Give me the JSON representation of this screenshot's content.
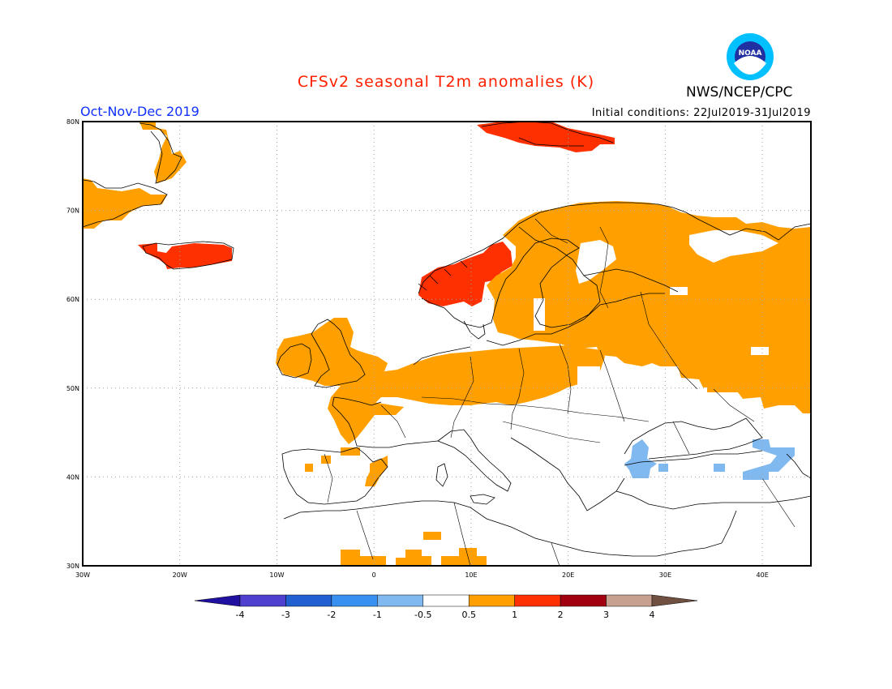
{
  "title": "CFSv2 seasonal T2m anomalies (K)",
  "period": "Oct-Nov-Dec 2019",
  "initial_conditions": "Initial conditions: 22Jul2019-31Jul2019",
  "agency": "NWS/NCEP/CPC",
  "logo_text": "NOAA",
  "map": {
    "lon_labels": [
      "30W",
      "20W",
      "10W",
      "0",
      "10E",
      "20E",
      "30E",
      "40E"
    ],
    "lat_labels": [
      "80N",
      "70N",
      "60N",
      "50N",
      "40N",
      "30N"
    ],
    "colors": {
      "land_outline": "#000000",
      "warm_0_5_1": "#ffa000",
      "warm_1_2": "#ff3000",
      "cool_m1_m0_5": "#80b8f0",
      "grid": "#909090"
    }
  },
  "colorbar": {
    "labels": [
      "-4",
      "-3",
      "-2",
      "-1",
      "-0.5",
      "0.5",
      "1",
      "2",
      "3",
      "4"
    ],
    "colors": [
      "#2010a0",
      "#5040d0",
      "#2060d0",
      "#3890f0",
      "#80b8f0",
      "#ffffff",
      "#ffa000",
      "#ff3000",
      "#a00010",
      "#c8a090",
      "#705040"
    ]
  }
}
